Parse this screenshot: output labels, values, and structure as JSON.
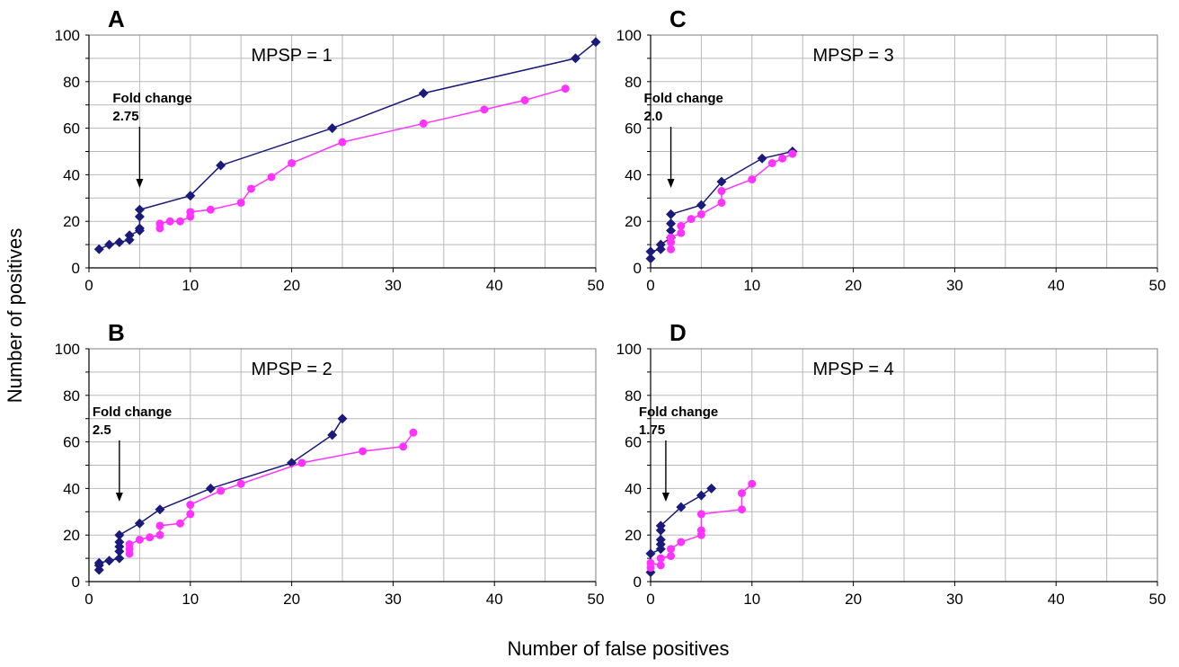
{
  "figure": {
    "xlabel": "Number of false positives",
    "ylabel": "Number of positives"
  },
  "chart_data": [
    {
      "type": "line",
      "panel_letter": "A",
      "title": "MPSP = 1",
      "annotation": [
        "Fold change",
        "2.75"
      ],
      "annotation_x": 5,
      "xlim": [
        0,
        50
      ],
      "ylim": [
        0,
        100
      ],
      "xticks": [
        0,
        10,
        20,
        30,
        40,
        50
      ],
      "yticks": [
        0,
        20,
        40,
        60,
        80,
        100
      ],
      "grid": true,
      "series": [
        {
          "color": "#1a1a7a",
          "marker": "diamond",
          "x": [
            1,
            2,
            3,
            4,
            4,
            5,
            5,
            5,
            5,
            10,
            13,
            24,
            33,
            48,
            50
          ],
          "y": [
            8,
            10,
            11,
            12,
            14,
            16,
            17,
            22,
            25,
            31,
            44,
            60,
            75,
            90,
            97
          ]
        },
        {
          "color": "#ff33ff",
          "marker": "circle",
          "x": [
            7,
            7,
            8,
            9,
            10,
            10,
            12,
            15,
            16,
            18,
            20,
            25,
            33,
            39,
            43,
            47
          ],
          "y": [
            17,
            19,
            20,
            20,
            22,
            24,
            25,
            28,
            34,
            39,
            45,
            54,
            62,
            68,
            72,
            77
          ]
        }
      ]
    },
    {
      "type": "line",
      "panel_letter": "B",
      "title": "MPSP = 2",
      "annotation": [
        "Fold change",
        "2.5"
      ],
      "annotation_x": 3,
      "xlim": [
        0,
        50
      ],
      "ylim": [
        0,
        100
      ],
      "xticks": [
        0,
        10,
        20,
        30,
        40,
        50
      ],
      "yticks": [
        0,
        20,
        40,
        60,
        80,
        100
      ],
      "grid": true,
      "series": [
        {
          "color": "#1a1a7a",
          "marker": "diamond",
          "x": [
            1,
            1,
            1,
            2,
            3,
            3,
            3,
            3,
            3,
            5,
            7,
            12,
            20,
            24,
            25
          ],
          "y": [
            5,
            7,
            8,
            9,
            10,
            13,
            15,
            17,
            20,
            25,
            31,
            40,
            51,
            63,
            70
          ]
        },
        {
          "color": "#ff33ff",
          "marker": "circle",
          "x": [
            4,
            4,
            4,
            5,
            6,
            7,
            7,
            9,
            10,
            10,
            13,
            15,
            21,
            27,
            31,
            32
          ],
          "y": [
            12,
            14,
            16,
            18,
            19,
            20,
            24,
            25,
            29,
            33,
            39,
            42,
            51,
            56,
            58,
            64
          ]
        }
      ]
    },
    {
      "type": "line",
      "panel_letter": "C",
      "title": "MPSP = 3",
      "annotation": [
        "Fold change",
        "2.0"
      ],
      "annotation_x": 2,
      "xlim": [
        0,
        50
      ],
      "ylim": [
        0,
        100
      ],
      "xticks": [
        0,
        10,
        20,
        30,
        40,
        50
      ],
      "yticks": [
        0,
        20,
        40,
        60,
        80,
        100
      ],
      "grid": true,
      "series": [
        {
          "color": "#1a1a7a",
          "marker": "diamond",
          "x": [
            0,
            0,
            1,
            1,
            2,
            2,
            2,
            2,
            5,
            7,
            11,
            14
          ],
          "y": [
            4,
            7,
            8,
            10,
            13,
            16,
            19,
            23,
            27,
            37,
            47,
            50
          ]
        },
        {
          "color": "#ff33ff",
          "marker": "circle",
          "x": [
            2,
            2,
            2,
            3,
            3,
            4,
            5,
            7,
            7,
            10,
            12,
            13,
            14
          ],
          "y": [
            8,
            11,
            13,
            15,
            18,
            21,
            23,
            28,
            33,
            38,
            45,
            47,
            49
          ]
        }
      ]
    },
    {
      "type": "line",
      "panel_letter": "D",
      "title": "MPSP = 4",
      "annotation": [
        "Fold change",
        "1.75"
      ],
      "annotation_x": 1.5,
      "xlim": [
        0,
        50
      ],
      "ylim": [
        0,
        100
      ],
      "xticks": [
        0,
        10,
        20,
        30,
        40,
        50
      ],
      "yticks": [
        0,
        20,
        40,
        60,
        80,
        100
      ],
      "grid": true,
      "series": [
        {
          "color": "#1a1a7a",
          "marker": "diamond",
          "x": [
            0,
            0,
            1,
            1,
            1,
            1,
            1,
            3,
            5,
            6
          ],
          "y": [
            4,
            12,
            14,
            16,
            18,
            22,
            24,
            32,
            37,
            40
          ]
        },
        {
          "color": "#ff33ff",
          "marker": "circle",
          "x": [
            0,
            0,
            1,
            1,
            2,
            2,
            3,
            5,
            5,
            5,
            9,
            9,
            10
          ],
          "y": [
            6,
            8,
            7,
            10,
            11,
            14,
            17,
            20,
            22,
            29,
            31,
            38,
            42
          ]
        }
      ]
    }
  ]
}
